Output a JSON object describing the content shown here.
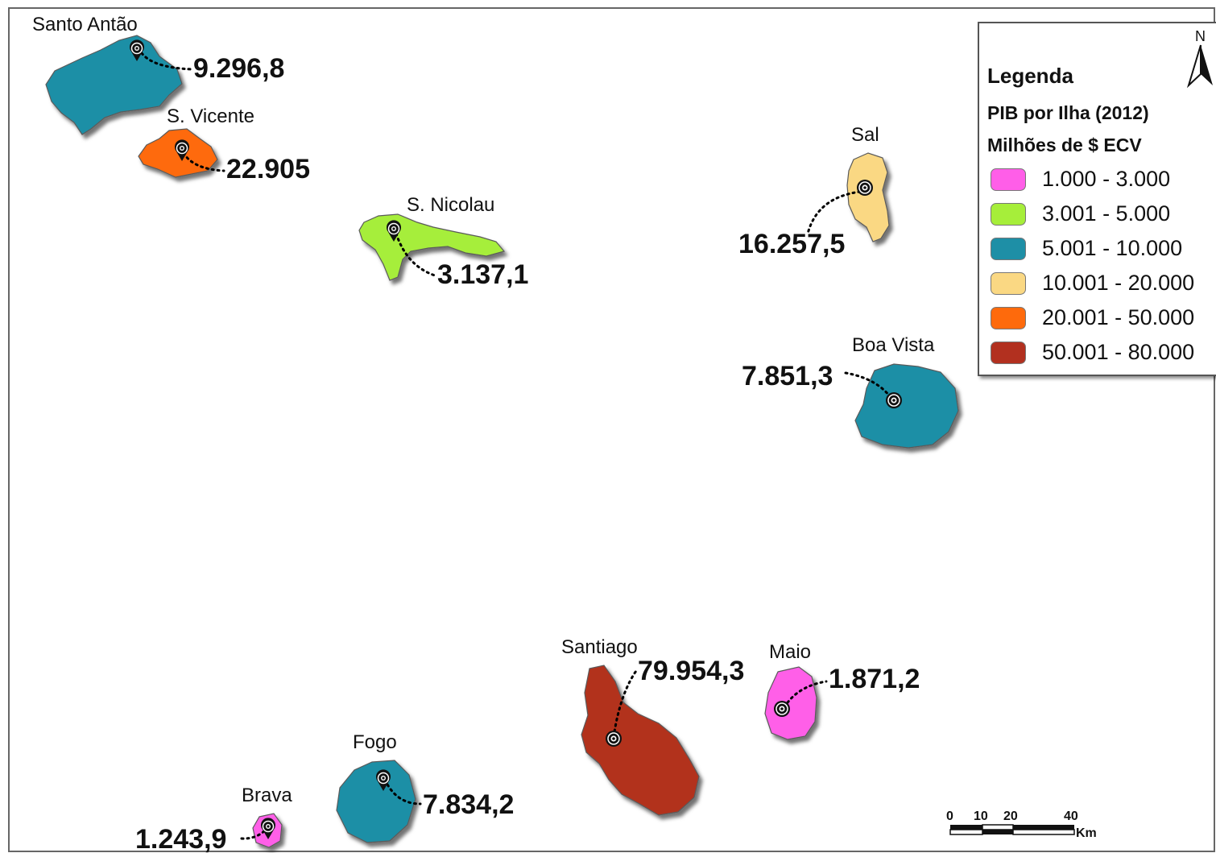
{
  "legend": {
    "title": "Legenda",
    "subtitle": "PIB por Ilha (2012)",
    "unit": "Milhões de $ ECV",
    "classes": [
      {
        "label": "1.000 - 3.000",
        "color": "#ff5ee8"
      },
      {
        "label": "3.001 - 5.000",
        "color": "#a6ee3a"
      },
      {
        "label": "5.001 - 10.000",
        "color": "#1e8fa6"
      },
      {
        "label": "10.001 - 20.000",
        "color": "#fad883"
      },
      {
        "label": "20.001 - 50.000",
        "color": "#fe6a0c"
      },
      {
        "label": "50.001 - 80.000",
        "color": "#b2301f"
      }
    ]
  },
  "north_arrow": {
    "label": "N"
  },
  "scale_bar": {
    "ticks": [
      "0",
      "10",
      "20",
      "40"
    ],
    "unit": "Km"
  },
  "islands": {
    "santo_antao": {
      "name": "Santo Antão",
      "value": "9.296,8",
      "color": "#1e8fa6"
    },
    "s_vicente": {
      "name": "S. Vicente",
      "value": "22.905",
      "color": "#fe6a0c"
    },
    "s_nicolau": {
      "name": "S. Nicolau",
      "value": "3.137,1",
      "color": "#a6ee3a"
    },
    "sal": {
      "name": "Sal",
      "value": "16.257,5",
      "color": "#fad883"
    },
    "boa_vista": {
      "name": "Boa Vista",
      "value": "7.851,3",
      "color": "#1e8fa6"
    },
    "santiago": {
      "name": "Santiago",
      "value": "79.954,3",
      "color": "#b2301f"
    },
    "maio": {
      "name": "Maio",
      "value": "1.871,2",
      "color": "#ff5ee8"
    },
    "fogo": {
      "name": "Fogo",
      "value": "7.834,2",
      "color": "#1e8fa6"
    },
    "brava": {
      "name": "Brava",
      "value": "1.243,9",
      "color": "#ff5ee8"
    }
  }
}
